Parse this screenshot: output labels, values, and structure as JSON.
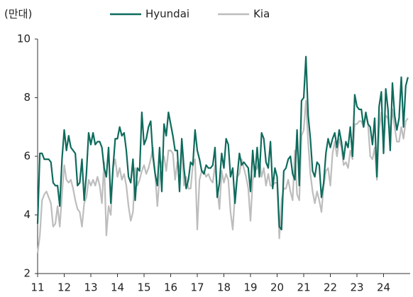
{
  "chart_data": {
    "type": "line",
    "y_label": "(만대)",
    "categories": [
      "11",
      null,
      null,
      null,
      null,
      null,
      null,
      null,
      null,
      null,
      null,
      null,
      "12",
      null,
      null,
      null,
      null,
      null,
      null,
      null,
      null,
      null,
      null,
      null,
      "13",
      null,
      null,
      null,
      null,
      null,
      null,
      null,
      null,
      null,
      null,
      null,
      "14",
      null,
      null,
      null,
      null,
      null,
      null,
      null,
      null,
      null,
      null,
      null,
      "15",
      null,
      null,
      null,
      null,
      null,
      null,
      null,
      null,
      null,
      null,
      null,
      "16",
      null,
      null,
      null,
      null,
      null,
      null,
      null,
      null,
      null,
      null,
      null,
      "17",
      null,
      null,
      null,
      null,
      null,
      null,
      null,
      null,
      null,
      null,
      null,
      "18",
      null,
      null,
      null,
      null,
      null,
      null,
      null,
      null,
      null,
      null,
      null,
      "19",
      null,
      null,
      null,
      null,
      null,
      null,
      null,
      null,
      null,
      null,
      null,
      "20",
      null,
      null,
      null,
      null,
      null,
      null,
      null,
      null,
      null,
      null,
      null,
      "21",
      null,
      null,
      null,
      null,
      null,
      null,
      null,
      null,
      null,
      null,
      null,
      "22",
      null,
      null,
      null,
      null,
      null,
      null,
      null,
      null,
      null,
      null,
      null,
      "23",
      null,
      null,
      null,
      null,
      null,
      null,
      null,
      null,
      null,
      null,
      null,
      "24",
      null,
      null,
      null,
      null,
      null,
      null,
      null,
      null,
      null,
      null,
      null
    ],
    "series": [
      {
        "name": "Hyundai",
        "color": "#0e6b5c",
        "values": [
          3.7,
          6.1,
          6.1,
          5.9,
          5.9,
          5.9,
          5.8,
          5.1,
          5.0,
          5.0,
          4.3,
          5.9,
          6.9,
          6.2,
          6.7,
          6.3,
          6.2,
          6.1,
          5.0,
          5.1,
          5.9,
          4.5,
          5.4,
          6.8,
          6.4,
          6.8,
          6.4,
          6.5,
          6.5,
          6.3,
          5.6,
          5.3,
          6.3,
          4.4,
          5.6,
          6.6,
          6.6,
          7.0,
          6.7,
          6.8,
          6.2,
          5.3,
          5.1,
          5.9,
          4.5,
          5.6,
          5.5,
          7.5,
          6.4,
          6.6,
          7.0,
          7.2,
          6.0,
          5.4,
          5.0,
          6.3,
          4.8,
          7.1,
          6.7,
          7.5,
          7.1,
          6.7,
          6.2,
          6.2,
          4.8,
          6.6,
          5.6,
          4.9,
          5.2,
          5.8,
          5.7,
          6.9,
          6.2,
          5.9,
          5.5,
          5.4,
          5.7,
          5.6,
          5.6,
          5.7,
          6.3,
          4.6,
          5.1,
          6.1,
          5.6,
          6.6,
          6.4,
          5.3,
          5.6,
          4.4,
          5.3,
          6.1,
          5.7,
          5.8,
          5.7,
          5.6,
          4.8,
          6.2,
          5.3,
          6.3,
          5.3,
          6.8,
          6.6,
          5.8,
          5.6,
          6.5,
          4.9,
          5.6,
          5.3,
          3.6,
          3.5,
          5.5,
          5.6,
          5.9,
          6.0,
          5.4,
          5.2,
          6.9,
          5.0,
          7.9,
          8.0,
          9.4,
          7.4,
          6.6,
          5.5,
          5.3,
          5.8,
          5.7,
          4.6,
          5.1,
          6.1,
          6.6,
          6.3,
          6.6,
          6.8,
          6.3,
          6.9,
          6.5,
          5.9,
          6.5,
          6.3,
          7.0,
          6.0,
          8.1,
          7.7,
          7.6,
          7.6,
          7.0,
          7.5,
          7.1,
          7.0,
          6.4,
          7.3,
          5.3,
          7.7,
          8.2,
          6.1,
          8.3,
          7.6,
          6.2,
          8.5,
          7.4,
          6.9,
          7.3,
          8.7,
          7.0,
          8.4,
          8.7
        ]
      },
      {
        "name": "Kia",
        "color": "#bdbdbd",
        "values": [
          2.7,
          3.3,
          4.5,
          4.7,
          4.8,
          4.6,
          4.4,
          3.6,
          3.7,
          4.3,
          3.6,
          4.7,
          5.7,
          5.2,
          5.1,
          5.2,
          4.9,
          4.5,
          4.2,
          4.1,
          3.6,
          4.4,
          4.6,
          5.2,
          5.0,
          5.2,
          5.0,
          5.3,
          5.0,
          4.4,
          5.8,
          3.3,
          4.3,
          4.0,
          5.6,
          5.9,
          5.3,
          5.6,
          5.2,
          5.4,
          5.0,
          4.3,
          3.8,
          4.1,
          5.6,
          5.0,
          5.2,
          5.5,
          5.7,
          5.4,
          5.6,
          5.9,
          6.3,
          5.4,
          4.3,
          5.3,
          5.8,
          6.0,
          5.5,
          6.2,
          6.2,
          6.1,
          5.2,
          5.8,
          5.5,
          6.4,
          5.0,
          5.3,
          4.9,
          4.9,
          5.7,
          5.9,
          3.5,
          5.2,
          5.5,
          5.5,
          5.3,
          5.4,
          5.2,
          5.1,
          5.7,
          4.9,
          4.2,
          5.5,
          5.1,
          5.4,
          5.2,
          4.1,
          3.5,
          4.7,
          5.3,
          5.4,
          5.9,
          5.6,
          5.3,
          4.9,
          3.8,
          5.2,
          5.5,
          5.6,
          5.9,
          5.3,
          5.6,
          5.0,
          5.4,
          5.0,
          5.0,
          5.1,
          5.1,
          3.2,
          4.5,
          4.9,
          4.9,
          5.2,
          4.8,
          4.5,
          6.2,
          4.7,
          4.5,
          6.7,
          6.9,
          7.9,
          6.5,
          5.4,
          4.8,
          4.4,
          4.8,
          4.5,
          4.1,
          5.0,
          5.5,
          5.6,
          5.0,
          6.1,
          6.5,
          6.0,
          6.6,
          6.3,
          5.7,
          5.8,
          5.6,
          6.2,
          5.9,
          7.1,
          7.1,
          7.2,
          7.2,
          7.0,
          7.4,
          7.1,
          6.0,
          5.9,
          6.3,
          5.2,
          6.9,
          7.5,
          6.3,
          7.4,
          7.3,
          6.8,
          7.6,
          7.0,
          6.5,
          6.5,
          7.0,
          6.6,
          7.2,
          7.3
        ]
      }
    ],
    "ylim": [
      2,
      10
    ],
    "yticks": [
      2,
      4,
      6,
      8,
      10
    ],
    "grid": false,
    "legend": "top"
  }
}
